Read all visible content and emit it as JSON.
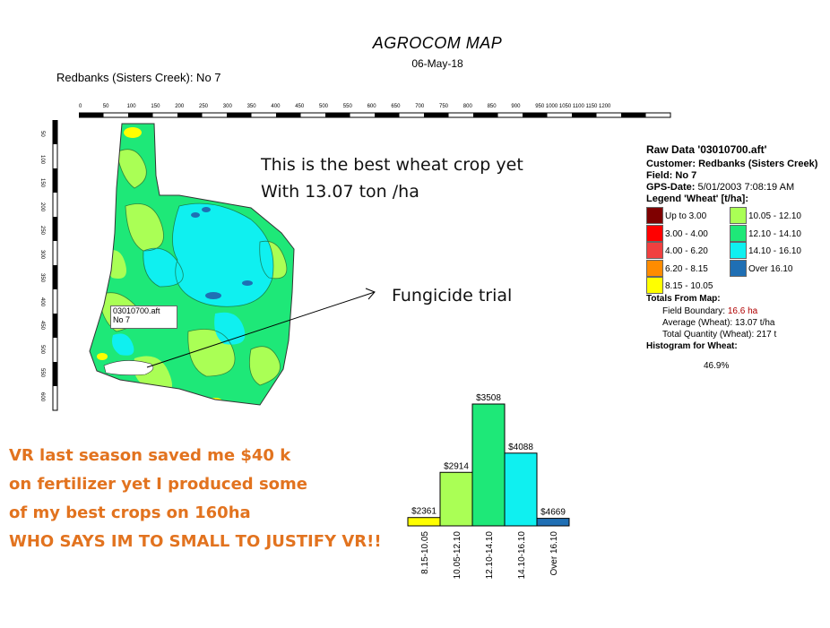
{
  "header": {
    "title": "AGROCOM MAP",
    "date": "06-May-18",
    "field_label": "Redbanks (Sisters Creek): No 7"
  },
  "ruler": {
    "top_ticks": [
      "0",
      "50",
      "100",
      "150",
      "200",
      "250",
      "300",
      "350",
      "400",
      "450",
      "500",
      "550",
      "600",
      "650",
      "700",
      "750",
      "800",
      "850",
      "900",
      "950 1000 1050 1100 1150 1200"
    ],
    "left_ticks": [
      "50",
      "100",
      "150",
      "200",
      "250",
      "300",
      "350",
      "400",
      "450",
      "500",
      "550",
      "600"
    ]
  },
  "map_tag": {
    "file": "03010700.aft",
    "field": "No 7"
  },
  "annotations": {
    "best_crop_line1": "This is the best wheat crop yet",
    "best_crop_line2": "With 13.07 ton /ha",
    "fungicide": "Fungicide trial"
  },
  "legend": {
    "raw_data": "Raw Data '03010700.aft'",
    "customer_label": "Customer:",
    "customer": "Redbanks (Sisters Creek)",
    "field_label": "Field:",
    "field": "No 7",
    "gps_label": "GPS-Date:",
    "gps": "5/01/2003 7:08:19 AM",
    "legend_title": "Legend 'Wheat' [t/ha]:",
    "classes": [
      {
        "label": "Up to 3.00",
        "color": "#7f0000"
      },
      {
        "label": "3.00 - 4.00",
        "color": "#ff0000"
      },
      {
        "label": "4.00 - 6.20",
        "color": "#f04040"
      },
      {
        "label": "6.20 - 8.15",
        "color": "#ff8c00"
      },
      {
        "label": "8.15 - 10.05",
        "color": "#ffff00"
      },
      {
        "label": "10.05 - 12.10",
        "color": "#aaff55"
      },
      {
        "label": "12.10 - 14.10",
        "color": "#1ee878"
      },
      {
        "label": "14.10 - 16.10",
        "color": "#0ff0f0"
      },
      {
        "label": "Over 16.10",
        "color": "#1f6fb4"
      }
    ],
    "totals_title": "Totals From Map:",
    "field_boundary_label": "Field Boundary:",
    "field_boundary_value": "16.6 ha",
    "average_label": "Average (Wheat):",
    "average_value": "13.07 t/ha",
    "total_label": "Total Quantity (Wheat):",
    "total_value": "217 t",
    "histogram_title": "Histogram for Wheat:",
    "max_percent": "46.9%"
  },
  "chart_data": {
    "type": "bar",
    "categories": [
      "8.15-10.05",
      "10.05-12.10",
      "12.10-14.10",
      "14.10-16.10",
      "Over 16.10"
    ],
    "values": [
      3.2,
      20.6,
      46.9,
      28.0,
      2.9
    ],
    "value_labels": [
      "$2361",
      "$2914",
      "$3508",
      "$4088",
      "$4669"
    ],
    "colors": [
      "#ffff00",
      "#aaff55",
      "#1ee878",
      "#0ff0f0",
      "#1f6fb4"
    ],
    "ylim": [
      0,
      46.9
    ]
  },
  "vr_message": {
    "line1": "VR last season saved me $40 k",
    "line2": "on fertilizer yet I produced some",
    "line3": "of my best crops on 160ha",
    "line4": "WHO SAYS IM TO SMALL TO JUSTIFY VR!!"
  }
}
